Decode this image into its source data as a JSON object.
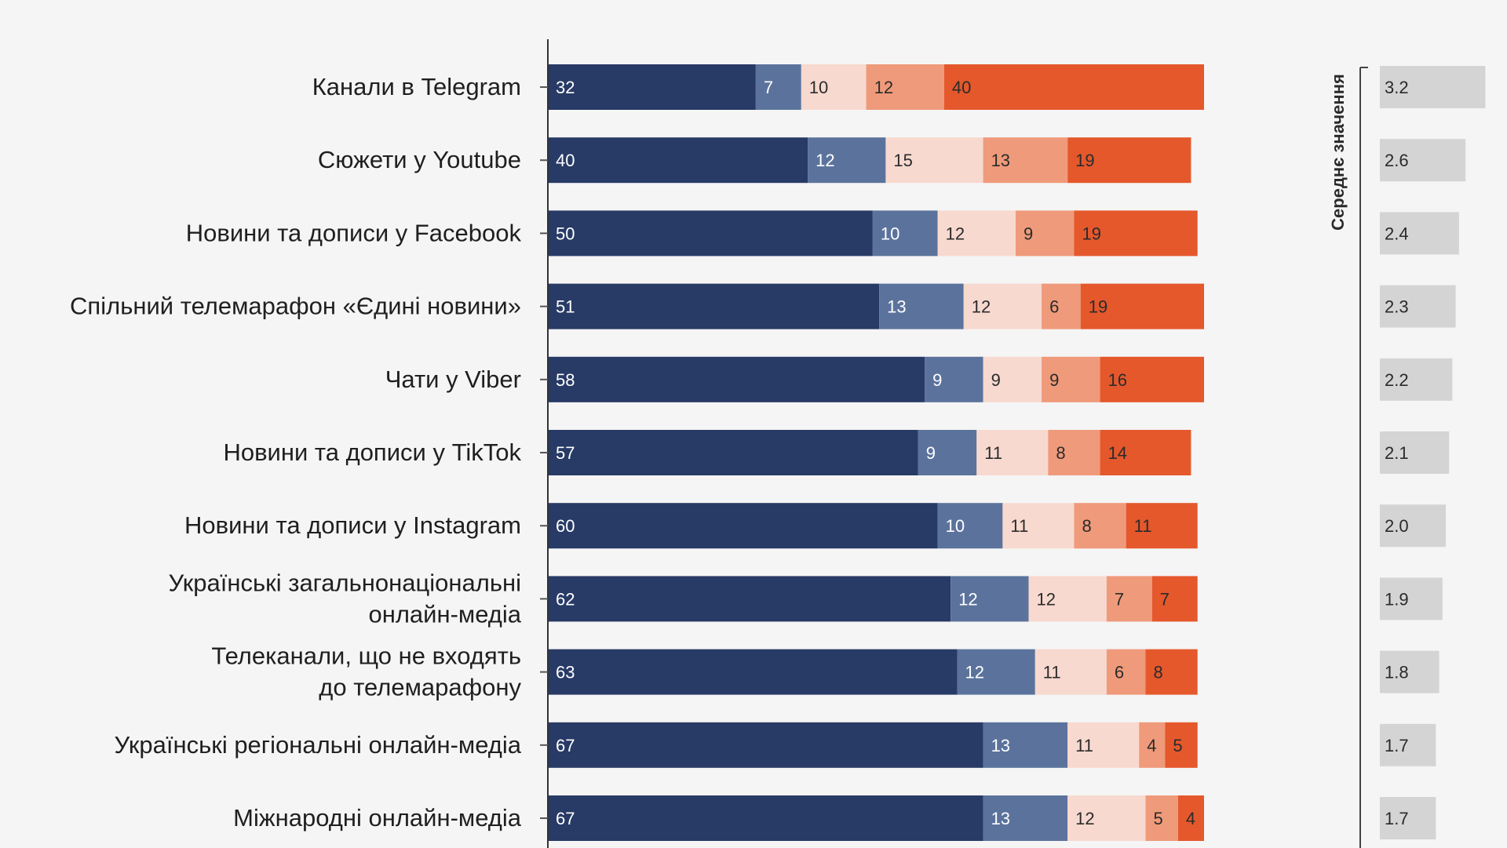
{
  "chart_data": {
    "type": "bar",
    "orientation": "horizontal",
    "stacked": true,
    "categories": [
      [
        "Канали в Telegram"
      ],
      [
        "Сюжети у Youtube"
      ],
      [
        "Новини та дописи у Facebook"
      ],
      [
        "Спільний телемарафон «Єдині новини»"
      ],
      [
        "Чати у Viber"
      ],
      [
        "Новини та дописи у TikTok"
      ],
      [
        "Новини та дописи у Instagram"
      ],
      [
        "Українські загальнонаціональні",
        "онлайн-медіа"
      ],
      [
        "Телеканали, що не входять",
        "до телемарафону"
      ],
      [
        "Українські регіональні онлайн-медіа"
      ],
      [
        "Міжнародні онлайн-медіа"
      ]
    ],
    "series": [
      {
        "color": "#283a66",
        "label_color": "#ffffff",
        "values": [
          32,
          40,
          50,
          51,
          58,
          57,
          60,
          62,
          63,
          67,
          67
        ]
      },
      {
        "color": "#5b739c",
        "label_color": "#ffffff",
        "values": [
          7,
          12,
          10,
          13,
          9,
          9,
          10,
          12,
          12,
          13,
          13
        ]
      },
      {
        "color": "#f8d9cf",
        "label_color": "#2b2b2b",
        "values": [
          10,
          15,
          12,
          12,
          9,
          11,
          11,
          12,
          11,
          11,
          12
        ]
      },
      {
        "color": "#ef9a7a",
        "label_color": "#2b2b2b",
        "values": [
          12,
          13,
          9,
          6,
          9,
          8,
          8,
          7,
          6,
          4,
          5
        ]
      },
      {
        "color": "#e4582c",
        "label_color": "#2b2b2b",
        "values": [
          40,
          19,
          19,
          19,
          16,
          14,
          11,
          7,
          8,
          5,
          4
        ]
      }
    ],
    "averages": {
      "title": "Середнє значення",
      "values": [
        "3.2",
        "2.6",
        "2.4",
        "2.3",
        "2.2",
        "2.1",
        "2.0",
        "1.9",
        "1.8",
        "1.7",
        "1.7"
      ],
      "bar_color": "#d4d4d4"
    },
    "xlim": [
      0,
      101
    ]
  }
}
